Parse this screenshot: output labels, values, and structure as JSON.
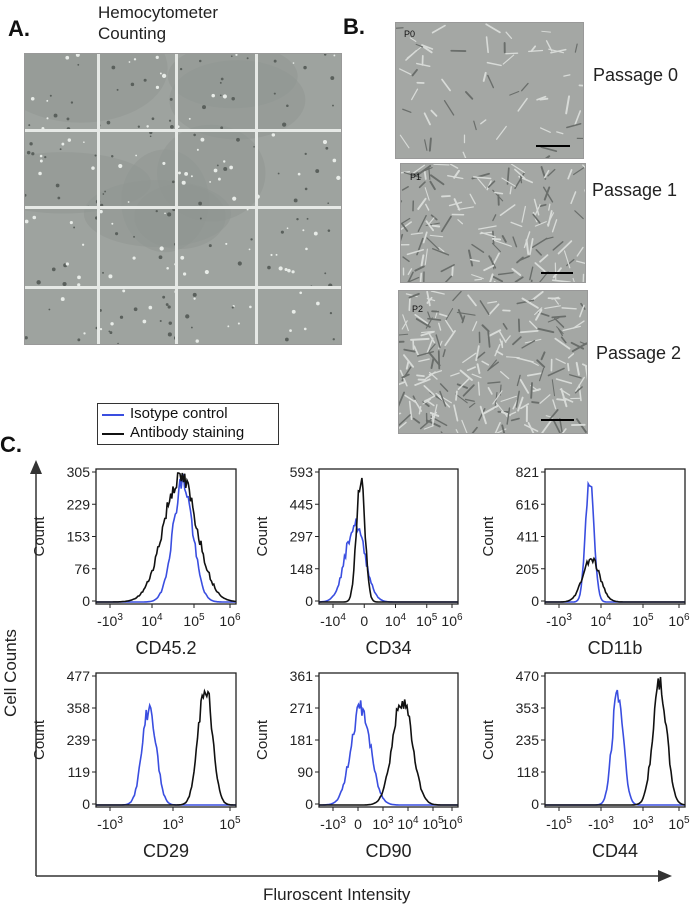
{
  "panel_a": {
    "letter": "A.",
    "title_line1": "Hemocytometer",
    "title_line2": "Counting"
  },
  "panel_b": {
    "letter": "B.",
    "images": [
      {
        "tag": "P0",
        "label": "Passage 0"
      },
      {
        "tag": "P1",
        "label": "Passage 1"
      },
      {
        "tag": "P2",
        "label": "Passage 2"
      }
    ]
  },
  "panel_c": {
    "letter": "C.",
    "legend": [
      {
        "label": "Isotype control",
        "color": "#3a4ee0"
      },
      {
        "label": "Antibody staining",
        "color": "#111111"
      }
    ],
    "y_axis_title": "Cell Counts",
    "x_axis_title": "Fluroscent Intensity"
  },
  "chart_data": [
    {
      "type": "histogram",
      "marker": "CD45.2",
      "ylabel": "Count",
      "yticks": [
        "305",
        "229",
        "153",
        "76",
        "0"
      ],
      "xticks": [
        [
          "-10",
          "3"
        ],
        [
          "10",
          "4"
        ],
        [
          "10",
          "5"
        ],
        [
          "10",
          "6"
        ]
      ],
      "series": [
        {
          "name": "Isotype control",
          "peak_pos": 0.62,
          "width": 0.07,
          "peak": 0.96
        },
        {
          "name": "Antibody staining",
          "peak_pos": 0.6,
          "width": 0.12,
          "peak": 1.0
        }
      ]
    },
    {
      "type": "histogram",
      "marker": "CD34",
      "ylabel": "Count",
      "yticks": [
        "593",
        "445",
        "297",
        "148",
        "0"
      ],
      "xticks": [
        [
          "-10",
          "4"
        ],
        [
          "0",
          ""
        ],
        [
          "10",
          "4"
        ],
        [
          "10",
          "5"
        ],
        [
          "10",
          "6"
        ]
      ],
      "series": [
        {
          "name": "Isotype control",
          "peak_pos": 0.26,
          "width": 0.07,
          "peak": 0.62
        },
        {
          "name": "Antibody staining",
          "peak_pos": 0.3,
          "width": 0.03,
          "peak": 1.0
        }
      ]
    },
    {
      "type": "histogram",
      "marker": "CD11b",
      "ylabel": "Count",
      "yticks": [
        "821",
        "616",
        "411",
        "205",
        "0"
      ],
      "xticks": [
        [
          "-10",
          "3"
        ],
        [
          "10",
          "4"
        ],
        [
          "10",
          "5"
        ],
        [
          "10",
          "6"
        ]
      ],
      "series": [
        {
          "name": "Isotype control",
          "peak_pos": 0.32,
          "width": 0.03,
          "peak": 0.97
        },
        {
          "name": "Antibody staining",
          "peak_pos": 0.33,
          "width": 0.06,
          "peak": 0.35
        }
      ]
    },
    {
      "type": "histogram",
      "marker": "CD29",
      "ylabel": "Count",
      "yticks": [
        "477",
        "358",
        "239",
        "119",
        "0"
      ],
      "xticks": [
        [
          "-10",
          "3"
        ],
        [
          "10",
          "3"
        ],
        [
          "10",
          "5"
        ]
      ],
      "series": [
        {
          "name": "Isotype control",
          "peak_pos": 0.38,
          "width": 0.05,
          "peak": 0.78
        },
        {
          "name": "Antibody staining",
          "peak_pos": 0.78,
          "width": 0.05,
          "peak": 0.97
        }
      ]
    },
    {
      "type": "histogram",
      "marker": "CD90",
      "ylabel": "Count",
      "yticks": [
        "361",
        "271",
        "181",
        "90",
        "0"
      ],
      "xticks": [
        [
          "-10",
          "3"
        ],
        [
          "0",
          ""
        ],
        [
          "10",
          "3"
        ],
        [
          "10",
          "4"
        ],
        [
          "10",
          "5"
        ],
        [
          "10",
          "6"
        ]
      ],
      "series": [
        {
          "name": "Isotype control",
          "peak_pos": 0.3,
          "width": 0.07,
          "peak": 0.78
        },
        {
          "name": "Antibody staining",
          "peak_pos": 0.6,
          "width": 0.07,
          "peak": 0.86
        }
      ]
    },
    {
      "type": "histogram",
      "marker": "CD44",
      "ylabel": "Count",
      "yticks": [
        "470",
        "353",
        "235",
        "118",
        "0"
      ],
      "xticks": [
        [
          "-10",
          "5"
        ],
        [
          "-10",
          "3"
        ],
        [
          "10",
          "3"
        ],
        [
          "10",
          "5"
        ]
      ],
      "series": [
        {
          "name": "Isotype control",
          "peak_pos": 0.52,
          "width": 0.04,
          "peak": 0.9
        },
        {
          "name": "Antibody staining",
          "peak_pos": 0.82,
          "width": 0.05,
          "peak": 0.96
        }
      ]
    }
  ]
}
